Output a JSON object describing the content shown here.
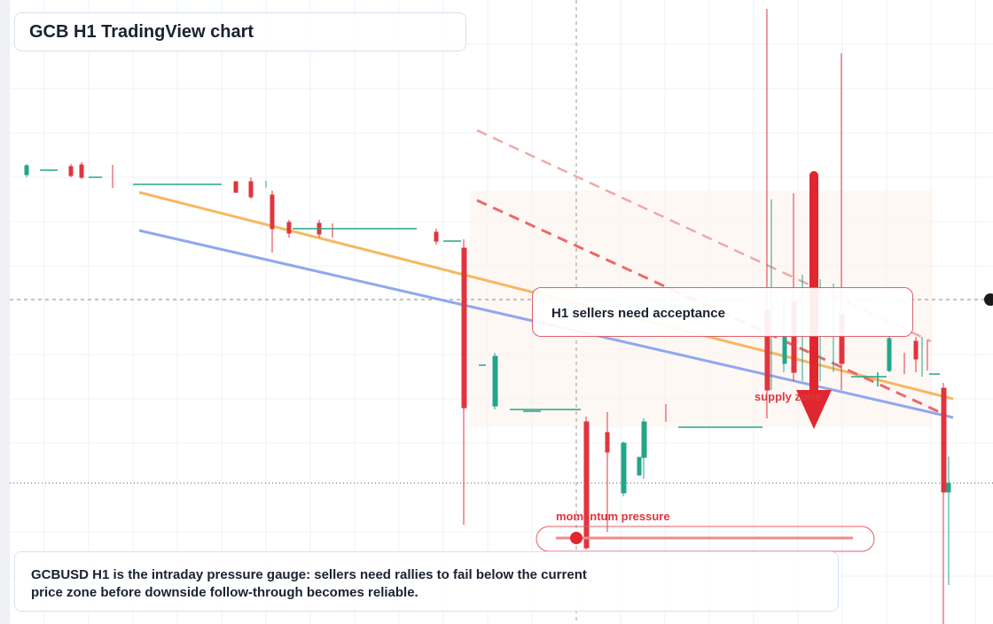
{
  "header": {
    "title": "GCB H1 TradingView chart"
  },
  "annotations": {
    "callout": "H1 sellers need acceptance",
    "zone": "supply zone",
    "gauge": "momentum pressure"
  },
  "footer": {
    "text": "GCBUSD H1 is the intraday pressure gauge: sellers need rallies to fail below the current price zone before downside follow-through becomes reliable."
  }
}
